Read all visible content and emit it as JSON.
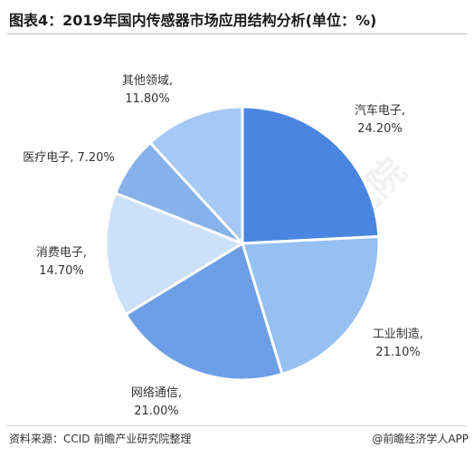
{
  "title": "图表4：2019年国内传感器市场应用结构分析(单位：%)",
  "source": "资料来源：CCID 前瞻产业研究院整理",
  "brand": "@前瞻经济学人APP",
  "watermark": "前瞻产业研究院",
  "chart_data": {
    "type": "pie",
    "title": "图表4：2019年国内传感器市场应用结构分析(单位：%)",
    "unit": "%",
    "slices": [
      {
        "label": "汽车电子",
        "value": 24.2,
        "display": "24.20%",
        "color": "#4a86df"
      },
      {
        "label": "工业制造",
        "value": 21.1,
        "display": "21.10%",
        "color": "#96bff2"
      },
      {
        "label": "网络通信",
        "value": 21.0,
        "display": "21.00%",
        "color": "#6d9fe6"
      },
      {
        "label": "消费电子",
        "value": 14.7,
        "display": "14.70%",
        "color": "#cde0fa"
      },
      {
        "label": "医疗电子",
        "value": 7.2,
        "display": "7.20%",
        "color": "#86b1ea"
      },
      {
        "label": "其他领域",
        "value": 11.8,
        "display": "11.80%",
        "color": "#a5c8f4"
      }
    ]
  }
}
